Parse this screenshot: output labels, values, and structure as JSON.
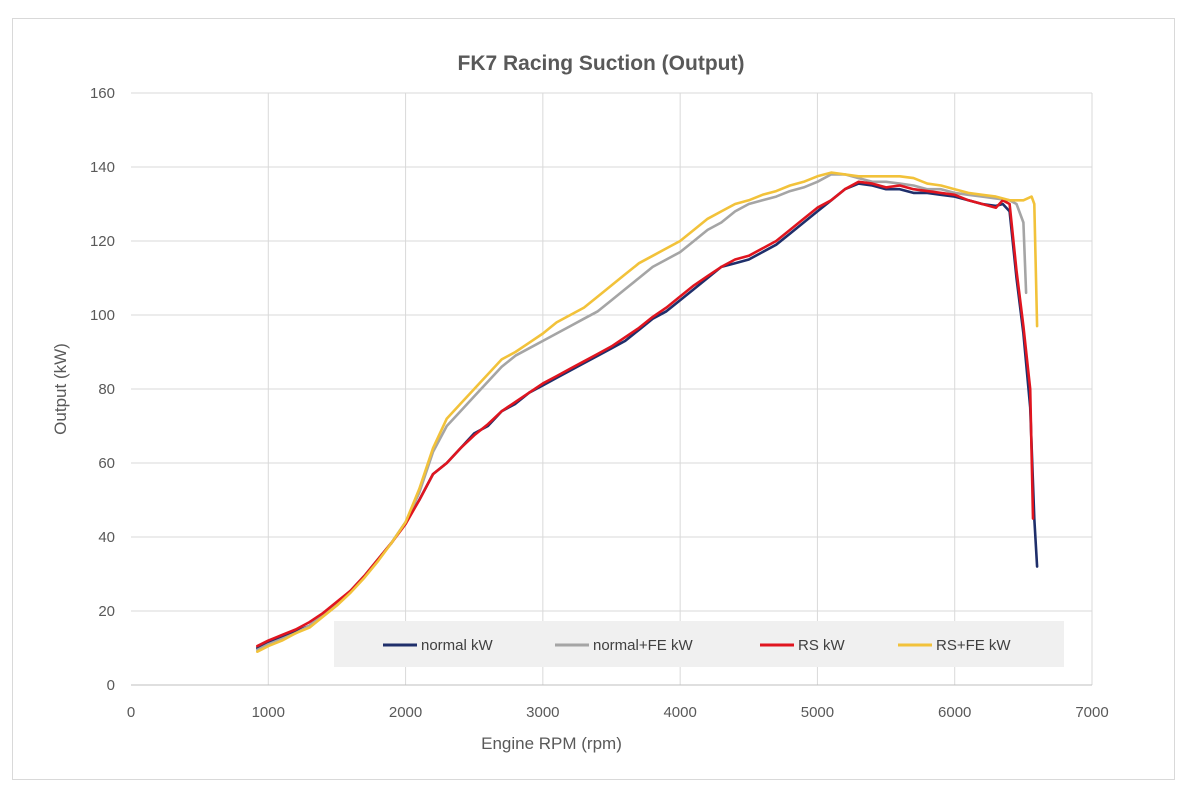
{
  "chart_data": {
    "type": "line",
    "title": "FK7 Racing Suction (Output)",
    "xlabel": "Engine RPM (rpm)",
    "ylabel": "Output (kW)",
    "xlim": [
      0,
      7000
    ],
    "ylim": [
      0,
      160
    ],
    "x_ticks": [
      "0",
      "1000",
      "2000",
      "3000",
      "4000",
      "5000",
      "6000",
      "7000"
    ],
    "y_ticks": [
      "0",
      "20",
      "40",
      "60",
      "80",
      "100",
      "120",
      "140",
      "160"
    ],
    "grid": true,
    "legend_position": "bottom-inside",
    "series": [
      {
        "name": "normal kW",
        "color": "#1f2f6b",
        "points": [
          [
            920,
            10
          ],
          [
            1000,
            11.5
          ],
          [
            1100,
            13
          ],
          [
            1200,
            14.5
          ],
          [
            1300,
            16
          ],
          [
            1400,
            19
          ],
          [
            1500,
            22
          ],
          [
            1600,
            25.5
          ],
          [
            1700,
            29.5
          ],
          [
            1800,
            34
          ],
          [
            1900,
            38.5
          ],
          [
            2000,
            44
          ],
          [
            2100,
            50
          ],
          [
            2200,
            57
          ],
          [
            2300,
            60
          ],
          [
            2400,
            64
          ],
          [
            2500,
            68
          ],
          [
            2600,
            70
          ],
          [
            2700,
            74
          ],
          [
            2800,
            76
          ],
          [
            2900,
            79
          ],
          [
            3000,
            81
          ],
          [
            3100,
            83
          ],
          [
            3200,
            85
          ],
          [
            3300,
            87
          ],
          [
            3400,
            89
          ],
          [
            3500,
            91
          ],
          [
            3600,
            93
          ],
          [
            3700,
            96
          ],
          [
            3800,
            99
          ],
          [
            3900,
            101
          ],
          [
            4000,
            104
          ],
          [
            4100,
            107
          ],
          [
            4200,
            110
          ],
          [
            4300,
            113
          ],
          [
            4400,
            114
          ],
          [
            4500,
            115
          ],
          [
            4600,
            117
          ],
          [
            4700,
            119
          ],
          [
            4800,
            122
          ],
          [
            4900,
            125
          ],
          [
            5000,
            128
          ],
          [
            5100,
            131
          ],
          [
            5200,
            134
          ],
          [
            5300,
            135.5
          ],
          [
            5400,
            135
          ],
          [
            5500,
            134
          ],
          [
            5600,
            134
          ],
          [
            5700,
            133
          ],
          [
            5800,
            133
          ],
          [
            5900,
            132.5
          ],
          [
            6000,
            132
          ],
          [
            6100,
            131
          ],
          [
            6200,
            130
          ],
          [
            6300,
            129.5
          ],
          [
            6350,
            130
          ],
          [
            6400,
            128
          ],
          [
            6450,
            110
          ],
          [
            6500,
            95
          ],
          [
            6550,
            75
          ],
          [
            6580,
            45
          ],
          [
            6600,
            32
          ]
        ]
      },
      {
        "name": "normal+FE kW",
        "color": "#a5a5a5",
        "points": [
          [
            920,
            9.5
          ],
          [
            1000,
            11
          ],
          [
            1100,
            12.5
          ],
          [
            1200,
            14
          ],
          [
            1300,
            16
          ],
          [
            1400,
            19
          ],
          [
            1500,
            22
          ],
          [
            1600,
            25.5
          ],
          [
            1700,
            29.5
          ],
          [
            1800,
            34
          ],
          [
            1900,
            38.5
          ],
          [
            2000,
            44
          ],
          [
            2100,
            52
          ],
          [
            2200,
            63
          ],
          [
            2300,
            70
          ],
          [
            2400,
            74
          ],
          [
            2500,
            78
          ],
          [
            2600,
            82
          ],
          [
            2700,
            86
          ],
          [
            2800,
            89
          ],
          [
            2900,
            91
          ],
          [
            3000,
            93
          ],
          [
            3100,
            95
          ],
          [
            3200,
            97
          ],
          [
            3300,
            99
          ],
          [
            3400,
            101
          ],
          [
            3500,
            104
          ],
          [
            3600,
            107
          ],
          [
            3700,
            110
          ],
          [
            3800,
            113
          ],
          [
            3900,
            115
          ],
          [
            4000,
            117
          ],
          [
            4100,
            120
          ],
          [
            4200,
            123
          ],
          [
            4300,
            125
          ],
          [
            4400,
            128
          ],
          [
            4500,
            130
          ],
          [
            4600,
            131
          ],
          [
            4700,
            132
          ],
          [
            4800,
            133.5
          ],
          [
            4900,
            134.5
          ],
          [
            5000,
            136
          ],
          [
            5100,
            138
          ],
          [
            5200,
            138
          ],
          [
            5300,
            137
          ],
          [
            5400,
            136
          ],
          [
            5500,
            136
          ],
          [
            5600,
            135.5
          ],
          [
            5700,
            135
          ],
          [
            5800,
            134
          ],
          [
            5900,
            134
          ],
          [
            6000,
            133
          ],
          [
            6100,
            132.5
          ],
          [
            6200,
            132
          ],
          [
            6300,
            131.5
          ],
          [
            6400,
            131
          ],
          [
            6450,
            130
          ],
          [
            6500,
            125
          ],
          [
            6520,
            106
          ]
        ]
      },
      {
        "name": "RS kW",
        "color": "#e0151f",
        "points": [
          [
            920,
            10.5
          ],
          [
            1000,
            12
          ],
          [
            1100,
            13.5
          ],
          [
            1200,
            15
          ],
          [
            1300,
            17
          ],
          [
            1400,
            19.5
          ],
          [
            1500,
            22.5
          ],
          [
            1600,
            25.5
          ],
          [
            1700,
            29.5
          ],
          [
            1800,
            34
          ],
          [
            1900,
            38.5
          ],
          [
            2000,
            43.5
          ],
          [
            2100,
            50
          ],
          [
            2200,
            57
          ],
          [
            2300,
            60
          ],
          [
            2400,
            64
          ],
          [
            2500,
            67.5
          ],
          [
            2600,
            70.5
          ],
          [
            2700,
            74
          ],
          [
            2800,
            76.5
          ],
          [
            2900,
            79
          ],
          [
            3000,
            81.5
          ],
          [
            3100,
            83.5
          ],
          [
            3200,
            85.5
          ],
          [
            3300,
            87.5
          ],
          [
            3400,
            89.5
          ],
          [
            3500,
            91.5
          ],
          [
            3600,
            94
          ],
          [
            3700,
            96.5
          ],
          [
            3800,
            99.5
          ],
          [
            3900,
            102
          ],
          [
            4000,
            105
          ],
          [
            4100,
            108
          ],
          [
            4200,
            110.5
          ],
          [
            4300,
            113
          ],
          [
            4400,
            115
          ],
          [
            4500,
            116
          ],
          [
            4600,
            118
          ],
          [
            4700,
            120
          ],
          [
            4800,
            123
          ],
          [
            4900,
            126
          ],
          [
            5000,
            129
          ],
          [
            5100,
            131
          ],
          [
            5200,
            134
          ],
          [
            5300,
            136
          ],
          [
            5400,
            135.5
          ],
          [
            5500,
            134.5
          ],
          [
            5600,
            135
          ],
          [
            5700,
            134
          ],
          [
            5800,
            133.5
          ],
          [
            5900,
            133
          ],
          [
            6000,
            132.5
          ],
          [
            6100,
            131
          ],
          [
            6200,
            130
          ],
          [
            6300,
            129
          ],
          [
            6350,
            131
          ],
          [
            6400,
            130
          ],
          [
            6450,
            112
          ],
          [
            6500,
            97
          ],
          [
            6550,
            80
          ],
          [
            6570,
            45
          ]
        ]
      },
      {
        "name": "RS+FE kW",
        "color": "#f2c23a",
        "points": [
          [
            920,
            9
          ],
          [
            1000,
            10.5
          ],
          [
            1100,
            12
          ],
          [
            1200,
            14
          ],
          [
            1300,
            15.5
          ],
          [
            1400,
            18.5
          ],
          [
            1500,
            21.5
          ],
          [
            1600,
            25
          ],
          [
            1700,
            29
          ],
          [
            1800,
            33.5
          ],
          [
            1900,
            38.5
          ],
          [
            2000,
            44
          ],
          [
            2100,
            53
          ],
          [
            2200,
            64
          ],
          [
            2300,
            72
          ],
          [
            2400,
            76
          ],
          [
            2500,
            80
          ],
          [
            2600,
            84
          ],
          [
            2700,
            88
          ],
          [
            2800,
            90
          ],
          [
            2900,
            92.5
          ],
          [
            3000,
            95
          ],
          [
            3100,
            98
          ],
          [
            3200,
            100
          ],
          [
            3300,
            102
          ],
          [
            3400,
            105
          ],
          [
            3500,
            108
          ],
          [
            3600,
            111
          ],
          [
            3700,
            114
          ],
          [
            3800,
            116
          ],
          [
            3900,
            118
          ],
          [
            4000,
            120
          ],
          [
            4100,
            123
          ],
          [
            4200,
            126
          ],
          [
            4300,
            128
          ],
          [
            4400,
            130
          ],
          [
            4500,
            131
          ],
          [
            4600,
            132.5
          ],
          [
            4700,
            133.5
          ],
          [
            4800,
            135
          ],
          [
            4900,
            136
          ],
          [
            5000,
            137.5
          ],
          [
            5100,
            138.5
          ],
          [
            5200,
            138
          ],
          [
            5300,
            137.5
          ],
          [
            5400,
            137.5
          ],
          [
            5500,
            137.5
          ],
          [
            5600,
            137.5
          ],
          [
            5700,
            137
          ],
          [
            5800,
            135.5
          ],
          [
            5900,
            135
          ],
          [
            6000,
            134
          ],
          [
            6100,
            133
          ],
          [
            6200,
            132.5
          ],
          [
            6300,
            132
          ],
          [
            6400,
            131
          ],
          [
            6500,
            131
          ],
          [
            6560,
            132
          ],
          [
            6580,
            130
          ],
          [
            6600,
            97
          ]
        ]
      }
    ]
  }
}
